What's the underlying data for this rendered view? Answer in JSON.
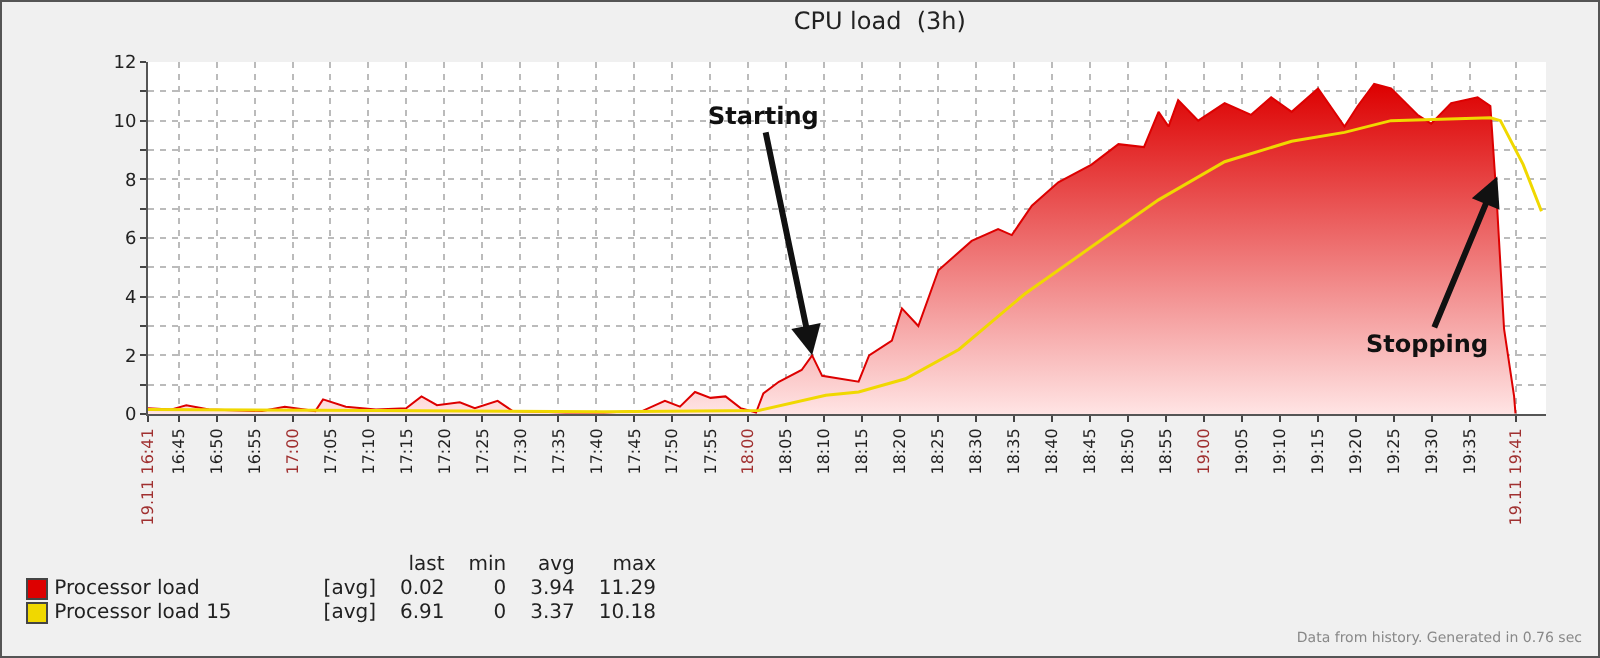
{
  "chart_data": {
    "type": "area",
    "title": "CPU load  (3h)",
    "xlim": [
      16.683,
      19.75
    ],
    "xticks": [
      {
        "value": 16.6833,
        "label": "19.11 16:41"
      },
      {
        "value": 16.75,
        "label": "16:45"
      },
      {
        "value": 16.8333,
        "label": "16:50"
      },
      {
        "value": 16.9167,
        "label": "16:55"
      },
      {
        "value": 17,
        "label": "17:00"
      },
      {
        "value": 17.0833,
        "label": "17:05"
      },
      {
        "value": 17.1667,
        "label": "17:10"
      },
      {
        "value": 17.25,
        "label": "17:15"
      },
      {
        "value": 17.3333,
        "label": "17:20"
      },
      {
        "value": 17.4167,
        "label": "17:25"
      },
      {
        "value": 17.5,
        "label": "17:30"
      },
      {
        "value": 17.5833,
        "label": "17:35"
      },
      {
        "value": 17.6667,
        "label": "17:40"
      },
      {
        "value": 17.75,
        "label": "17:45"
      },
      {
        "value": 17.8333,
        "label": "17:50"
      },
      {
        "value": 17.9167,
        "label": "17:55"
      },
      {
        "value": 18,
        "label": "18:00"
      },
      {
        "value": 18.0833,
        "label": "18:05"
      },
      {
        "value": 18.1667,
        "label": "18:10"
      },
      {
        "value": 18.25,
        "label": "18:15"
      },
      {
        "value": 18.3333,
        "label": "18:20"
      },
      {
        "value": 18.4167,
        "label": "18:25"
      },
      {
        "value": 18.5,
        "label": "18:30"
      },
      {
        "value": 18.5833,
        "label": "18:35"
      },
      {
        "value": 18.6667,
        "label": "18:40"
      },
      {
        "value": 18.75,
        "label": "18:45"
      },
      {
        "value": 18.8333,
        "label": "18:50"
      },
      {
        "value": 18.9167,
        "label": "18:55"
      },
      {
        "value": 19,
        "label": "19:00"
      },
      {
        "value": 19.0833,
        "label": "19:05"
      },
      {
        "value": 19.1667,
        "label": "19:10"
      },
      {
        "value": 19.25,
        "label": "19:15"
      },
      {
        "value": 19.3333,
        "label": "19:20"
      },
      {
        "value": 19.4167,
        "label": "19:25"
      },
      {
        "value": 19.5,
        "label": "19:30"
      },
      {
        "value": 19.5833,
        "label": "19:35"
      },
      {
        "value": 19.6833,
        "label": "19.11 19:41"
      }
    ],
    "ylim": [
      0,
      12
    ],
    "yticks": [
      0,
      {
        "value": 1,
        "label": null
      },
      2,
      {
        "value": 3,
        "label": null
      },
      4,
      {
        "value": 5,
        "label": null
      },
      6,
      {
        "value": 7,
        "label": null
      },
      8,
      {
        "value": 9,
        "label": null
      },
      10,
      {
        "value": 11,
        "label": null
      },
      12
    ],
    "grid": true,
    "legend": "bottom left",
    "series": [
      {
        "name": "Processor load",
        "color": "#dd0000",
        "x": [
          16.683,
          16.733,
          16.767,
          16.817,
          16.933,
          16.983,
          17.05,
          17.067,
          17.117,
          17.183,
          17.25,
          17.283,
          17.317,
          17.367,
          17.4,
          17.45,
          17.483,
          17.6,
          17.683,
          17.767,
          17.817,
          17.85,
          17.883,
          17.917,
          17.95,
          17.983,
          18.017,
          18.033,
          18.067,
          18.117,
          18.14,
          18.162,
          18.242,
          18.265,
          18.315,
          18.337,
          18.373,
          18.417,
          18.49,
          18.548,
          18.578,
          18.622,
          18.68,
          18.753,
          18.812,
          18.868,
          18.9,
          18.922,
          18.943,
          18.987,
          19.045,
          19.103,
          19.147,
          19.192,
          19.25,
          19.308,
          19.337,
          19.373,
          19.41,
          19.468,
          19.498,
          19.542,
          19.6,
          19.628,
          19.643,
          19.658,
          19.68,
          19.683
        ],
        "values": [
          0.2,
          0.15,
          0.3,
          0.15,
          0.1,
          0.25,
          0.1,
          0.5,
          0.25,
          0.15,
          0.2,
          0.6,
          0.3,
          0.4,
          0.2,
          0.45,
          0.1,
          0.05,
          0.05,
          0.1,
          0.45,
          0.25,
          0.75,
          0.55,
          0.6,
          0.2,
          0.05,
          0.7,
          1.1,
          1.5,
          2.0,
          1.3,
          1.1,
          2.0,
          2.5,
          3.6,
          3.0,
          4.9,
          5.9,
          6.3,
          6.1,
          7.1,
          7.9,
          8.5,
          9.2,
          9.1,
          10.3,
          9.8,
          10.7,
          10.0,
          10.6,
          10.2,
          10.8,
          10.3,
          11.1,
          9.8,
          10.5,
          11.25,
          11.1,
          10.2,
          9.9,
          10.6,
          10.8,
          10.5,
          7.0,
          2.9,
          0.6,
          0.02
        ]
      },
      {
        "name": "Processor load 15",
        "color": "#f0d800",
        "type": "line",
        "x": [
          16.683,
          17.183,
          17.683,
          18.023,
          18.17,
          18.242,
          18.345,
          18.462,
          18.607,
          18.753,
          18.9,
          19.045,
          19.192,
          19.308,
          19.41,
          19.628,
          19.65,
          19.7,
          19.74
        ],
        "values": [
          0.15,
          0.12,
          0.08,
          0.12,
          0.64,
          0.75,
          1.2,
          2.2,
          4.1,
          5.7,
          7.3,
          8.6,
          9.3,
          9.6,
          10.0,
          10.1,
          10.0,
          8.5,
          6.91
        ]
      }
    ],
    "annotations": [
      {
        "text": "Starting",
        "x": 18.14,
        "y": 2.0
      },
      {
        "text": "Stopping",
        "x": 19.643,
        "y": 8.1
      },
      "last",
      "min",
      "avg",
      "max",
      "[avg]",
      "0.02",
      "0",
      "3.94",
      "11.29",
      "[avg]",
      "6.91",
      "0",
      "3.37",
      "10.18",
      "Data from history. Generated in 0.76 sec"
    ]
  }
}
